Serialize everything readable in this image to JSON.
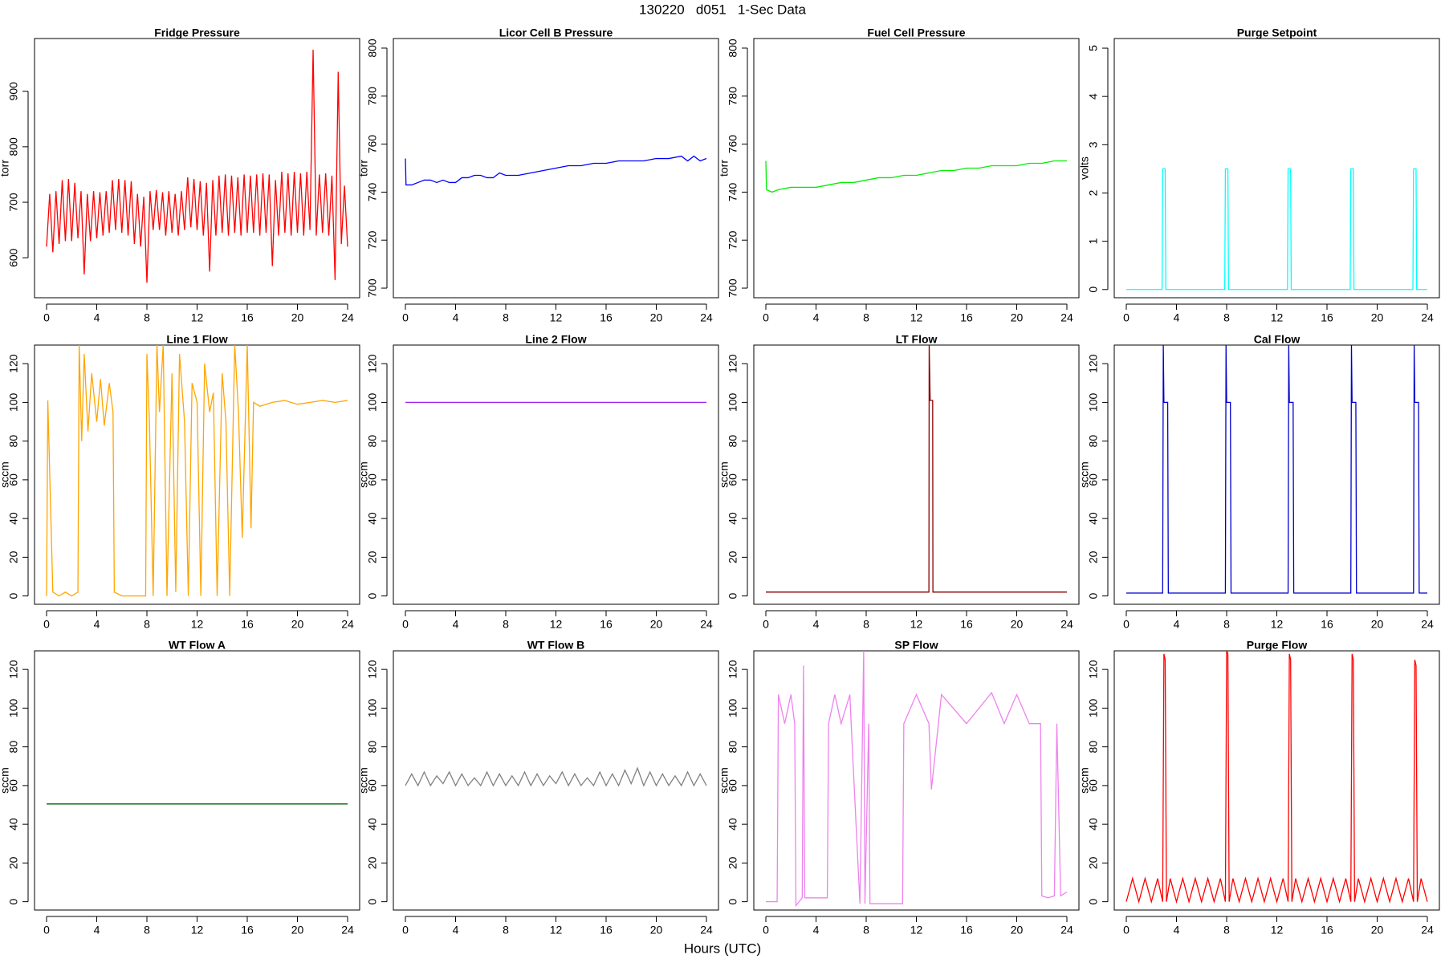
{
  "title": "130220   d051   1-Sec Data",
  "xlabel": "Hours (UTC)",
  "chart_data": [
    {
      "type": "line",
      "title": "Fridge Pressure",
      "ylabel": "torr",
      "x": [
        0,
        0.25,
        0.5,
        0.75,
        1,
        1.25,
        1.5,
        1.75,
        2,
        2.25,
        2.5,
        2.75,
        3,
        3.25,
        3.5,
        3.75,
        4,
        4.25,
        4.5,
        4.75,
        5,
        5.25,
        5.5,
        5.75,
        6,
        6.25,
        6.5,
        6.75,
        7,
        7.25,
        7.5,
        7.75,
        8,
        8.25,
        8.5,
        8.75,
        9,
        9.25,
        9.5,
        9.75,
        10,
        10.25,
        10.5,
        10.75,
        11,
        11.25,
        11.5,
        11.75,
        12,
        12.25,
        12.5,
        12.75,
        13,
        13.25,
        13.5,
        13.75,
        14,
        14.25,
        14.5,
        14.75,
        15,
        15.25,
        15.5,
        15.75,
        16,
        16.25,
        16.5,
        16.75,
        17,
        17.25,
        17.5,
        17.75,
        18,
        18.25,
        18.5,
        18.75,
        19,
        19.25,
        19.5,
        19.75,
        20,
        20.25,
        20.5,
        20.75,
        21,
        21.25,
        21.5,
        21.75,
        22,
        22.25,
        22.5,
        22.75,
        23,
        23.25,
        23.5,
        23.75,
        24
      ],
      "series": [
        {
          "color": "#ff0000",
          "values": [
            620,
            715,
            610,
            720,
            625,
            740,
            630,
            742,
            630,
            735,
            635,
            720,
            570,
            715,
            630,
            720,
            635,
            718,
            640,
            720,
            645,
            740,
            650,
            742,
            645,
            740,
            640,
            738,
            625,
            715,
            620,
            710,
            555,
            720,
            650,
            722,
            650,
            718,
            640,
            720,
            645,
            715,
            640,
            720,
            650,
            745,
            655,
            742,
            650,
            738,
            640,
            735,
            575,
            740,
            640,
            748,
            645,
            750,
            640,
            748,
            645,
            745,
            640,
            750,
            645,
            748,
            645,
            750,
            640,
            752,
            645,
            750,
            585,
            740,
            640,
            755,
            645,
            752,
            640,
            755,
            645,
            752,
            640,
            755,
            650,
            975,
            640,
            750,
            645,
            752,
            640,
            748,
            560,
            935,
            625,
            730,
            620
          ]
        }
      ],
      "xlim": [
        -0.96,
        24.96
      ],
      "ylim": [
        528,
        995
      ],
      "xticks": [
        0,
        4,
        8,
        12,
        16,
        20,
        24
      ],
      "yticks": [
        600,
        700,
        800,
        900
      ]
    },
    {
      "type": "line",
      "title": "Licor Cell B Pressure",
      "ylabel": "torr",
      "x": [
        0,
        0.05,
        0.5,
        1,
        1.5,
        2,
        2.5,
        3,
        3.5,
        4,
        4.5,
        5,
        5.5,
        6,
        6.5,
        7,
        7.5,
        8,
        8.5,
        9,
        10,
        11,
        12,
        13,
        14,
        15,
        16,
        17,
        18,
        19,
        20,
        21,
        22,
        22.5,
        23,
        23.5,
        24
      ],
      "series": [
        {
          "color": "#0000ff",
          "values": [
            754,
            743,
            743,
            744,
            745,
            745,
            744,
            745,
            744,
            744,
            746,
            746,
            747,
            747,
            746,
            746,
            748,
            747,
            747,
            747,
            748,
            749,
            750,
            751,
            751,
            752,
            752,
            753,
            753,
            753,
            754,
            754,
            755,
            753,
            755,
            753,
            754
          ]
        }
      ],
      "xlim": [
        -0.96,
        24.96
      ],
      "ylim": [
        696,
        804
      ],
      "xticks": [
        0,
        4,
        8,
        12,
        16,
        20,
        24
      ],
      "yticks": [
        700,
        720,
        740,
        760,
        780,
        800
      ]
    },
    {
      "type": "line",
      "title": "Fuel Cell Pressure",
      "ylabel": "torr",
      "x": [
        0,
        0.05,
        0.5,
        1,
        2,
        3,
        4,
        5,
        6,
        7,
        8,
        9,
        10,
        11,
        12,
        13,
        14,
        15,
        16,
        17,
        18,
        19,
        20,
        21,
        22,
        23,
        24
      ],
      "series": [
        {
          "color": "#00ee00",
          "values": [
            753,
            741,
            740,
            741,
            742,
            742,
            742,
            743,
            744,
            744,
            745,
            746,
            746,
            747,
            747,
            748,
            749,
            749,
            750,
            750,
            751,
            751,
            751,
            752,
            752,
            753,
            753
          ]
        }
      ],
      "xlim": [
        -0.96,
        24.96
      ],
      "ylim": [
        696,
        804
      ],
      "xticks": [
        0,
        4,
        8,
        12,
        16,
        20,
        24
      ],
      "yticks": [
        700,
        720,
        740,
        760,
        780,
        800
      ]
    },
    {
      "type": "line",
      "title": "Purge Setpoint",
      "ylabel": "volts",
      "x": [
        0,
        2.85,
        2.9,
        3.1,
        3.15,
        7.85,
        7.9,
        8.1,
        8.15,
        12.85,
        12.9,
        13.1,
        13.15,
        17.85,
        17.9,
        18.1,
        18.15,
        22.85,
        22.9,
        23.1,
        23.15,
        24
      ],
      "series": [
        {
          "color": "#00ffff",
          "values": [
            0,
            0,
            2.5,
            2.5,
            0,
            0,
            2.5,
            2.5,
            0,
            0,
            2.5,
            2.5,
            0,
            0,
            2.5,
            2.5,
            0,
            0,
            2.5,
            2.5,
            0,
            0
          ]
        }
      ],
      "xlim": [
        -0.96,
        24.96
      ],
      "ylim": [
        -0.17,
        5.2
      ],
      "xticks": [
        0,
        4,
        8,
        12,
        16,
        20,
        24
      ],
      "yticks": [
        0,
        1,
        2,
        3,
        4,
        5
      ]
    },
    {
      "type": "line",
      "title": "Line 1 Flow",
      "ylabel": "sccm",
      "x": [
        0,
        0.1,
        0.5,
        1,
        1.5,
        2,
        2.5,
        2.6,
        2.8,
        3,
        3.3,
        3.6,
        4,
        4.3,
        4.6,
        5,
        5.3,
        5.4,
        6,
        7,
        7.9,
        8,
        8.2,
        8.5,
        8.8,
        9,
        9.3,
        9.6,
        10,
        10.3,
        10.6,
        11,
        11.3,
        11.6,
        12,
        12.3,
        12.6,
        13,
        13.3,
        13.6,
        14,
        14.3,
        14.6,
        15,
        15.3,
        15.6,
        16,
        16.3,
        16.5,
        17,
        18,
        19,
        20,
        21,
        22,
        23,
        24
      ],
      "series": [
        {
          "color": "#ffa500",
          "values": [
            0,
            101,
            2,
            0,
            2,
            0,
            2,
            130,
            80,
            125,
            85,
            115,
            90,
            112,
            88,
            110,
            95,
            2,
            0,
            0,
            0,
            125,
            90,
            0,
            130,
            95,
            130,
            0,
            115,
            2,
            125,
            90,
            0,
            110,
            100,
            0,
            120,
            95,
            105,
            0,
            115,
            90,
            0,
            130,
            95,
            30,
            130,
            35,
            100,
            98,
            100,
            101,
            99,
            100,
            101,
            100,
            101
          ]
        }
      ],
      "xlim": [
        -0.96,
        24.96
      ],
      "ylim": [
        -4.3,
        129.6
      ],
      "xticks": [
        0,
        4,
        8,
        12,
        16,
        20,
        24
      ],
      "yticks": [
        0,
        20,
        40,
        60,
        80,
        100,
        120
      ]
    },
    {
      "type": "line",
      "title": "Line 2 Flow",
      "ylabel": "sccm",
      "x": [
        0,
        12,
        24
      ],
      "series": [
        {
          "color": "#a020f0",
          "values": [
            100,
            100,
            100
          ]
        }
      ],
      "xlim": [
        -0.96,
        24.96
      ],
      "ylim": [
        -4.3,
        129.6
      ],
      "xticks": [
        0,
        4,
        8,
        12,
        16,
        20,
        24
      ],
      "yticks": [
        0,
        20,
        40,
        60,
        80,
        100,
        120
      ]
    },
    {
      "type": "line",
      "title": "LT Flow",
      "ylabel": "sccm",
      "x": [
        0,
        13,
        13.02,
        13.1,
        13.3,
        13.32,
        24
      ],
      "series": [
        {
          "color": "#8b0000",
          "values": [
            2,
            2,
            130,
            101,
            101,
            2,
            2
          ]
        }
      ],
      "xlim": [
        -0.96,
        24.96
      ],
      "ylim": [
        -4.3,
        129.6
      ],
      "xticks": [
        0,
        4,
        8,
        12,
        16,
        20,
        24
      ],
      "yticks": [
        0,
        20,
        40,
        60,
        80,
        100,
        120
      ]
    },
    {
      "type": "line",
      "title": "Cal Flow",
      "ylabel": "sccm",
      "x": [
        0,
        2.9,
        2.95,
        3.0,
        3.3,
        3.35,
        7.9,
        7.95,
        8.0,
        8.3,
        8.35,
        12.9,
        12.95,
        13.0,
        13.3,
        13.35,
        17.9,
        17.95,
        18.0,
        18.3,
        18.35,
        22.9,
        22.95,
        23.0,
        23.3,
        23.35,
        24
      ],
      "series": [
        {
          "color": "#0000cd",
          "values": [
            1.5,
            1.5,
            130,
            100,
            100,
            1.5,
            1.5,
            130,
            100,
            100,
            1.5,
            1.5,
            130,
            100,
            100,
            1.5,
            1.5,
            130,
            100,
            100,
            1.5,
            1.5,
            130,
            100,
            100,
            1.5,
            1.5
          ]
        }
      ],
      "xlim": [
        -0.96,
        24.96
      ],
      "ylim": [
        -4.3,
        129.6
      ],
      "xticks": [
        0,
        4,
        8,
        12,
        16,
        20,
        24
      ],
      "yticks": [
        0,
        20,
        40,
        60,
        80,
        100,
        120
      ]
    },
    {
      "type": "line",
      "title": "WT Flow A",
      "ylabel": "sccm",
      "x": [
        0,
        12,
        24
      ],
      "series": [
        {
          "color": "#006400",
          "values": [
            50.5,
            50.5,
            50.5
          ]
        }
      ],
      "xlim": [
        -0.96,
        24.96
      ],
      "ylim": [
        -4.3,
        129.6
      ],
      "xticks": [
        0,
        4,
        8,
        12,
        16,
        20,
        24
      ],
      "yticks": [
        0,
        20,
        40,
        60,
        80,
        100,
        120
      ]
    },
    {
      "type": "line",
      "title": "WT Flow B",
      "ylabel": "sccm",
      "x": [
        0,
        0.5,
        1,
        1.5,
        2,
        2.5,
        3,
        3.5,
        4,
        4.5,
        5,
        5.5,
        6,
        6.5,
        7,
        7.5,
        8,
        8.5,
        9,
        9.5,
        10,
        10.5,
        11,
        11.5,
        12,
        12.5,
        13,
        13.5,
        14,
        14.5,
        15,
        15.5,
        16,
        16.5,
        17,
        17.5,
        18,
        18.5,
        19,
        19.5,
        20,
        20.5,
        21,
        21.5,
        22,
        22.5,
        23,
        23.5,
        24
      ],
      "series": [
        {
          "color": "#808080",
          "values": [
            60,
            66,
            60,
            67,
            60,
            65,
            61,
            67,
            60,
            66,
            60,
            64,
            60,
            67,
            60,
            66,
            60,
            65,
            60,
            67,
            60,
            66,
            60,
            65,
            61,
            67,
            60,
            66,
            60,
            64,
            60,
            67,
            60,
            66,
            60,
            68,
            61,
            69,
            60,
            67,
            60,
            66,
            60,
            65,
            60,
            67,
            60,
            66,
            60
          ]
        }
      ],
      "xlim": [
        -0.96,
        24.96
      ],
      "ylim": [
        -4.3,
        129.6
      ],
      "xticks": [
        0,
        4,
        8,
        12,
        16,
        20,
        24
      ],
      "yticks": [
        0,
        20,
        40,
        60,
        80,
        100,
        120
      ]
    },
    {
      "type": "line",
      "title": "SP Flow",
      "ylabel": "sccm",
      "x": [
        0,
        0.9,
        1,
        1.5,
        2,
        2.3,
        2.4,
        2.9,
        3,
        3.1,
        4.9,
        5,
        5.5,
        6,
        6.7,
        6.8,
        7.5,
        7.8,
        7.9,
        8.2,
        8.3,
        10.9,
        11,
        12,
        13,
        13.2,
        14,
        16,
        18,
        19,
        20,
        21,
        21.9,
        22,
        22.5,
        23,
        23.2,
        23.5,
        24
      ],
      "series": [
        {
          "color": "#ee82ee",
          "values": [
            0,
            0,
            107,
            92,
            107,
            92,
            -2,
            2,
            122,
            2,
            2,
            92,
            107,
            92,
            107,
            92,
            -1,
            130,
            -1,
            92,
            -1,
            -1,
            92,
            107,
            92,
            58,
            107,
            92,
            108,
            92,
            107,
            92,
            92,
            3,
            2,
            3,
            92,
            3,
            5
          ]
        }
      ],
      "xlim": [
        -0.96,
        24.96
      ],
      "ylim": [
        -4.3,
        129.6
      ],
      "xticks": [
        0,
        4,
        8,
        12,
        16,
        20,
        24
      ],
      "yticks": [
        0,
        20,
        40,
        60,
        80,
        100,
        120
      ]
    },
    {
      "type": "line",
      "title": "Purge Flow",
      "ylabel": "sccm",
      "x": [
        0,
        0.5,
        1,
        1.5,
        2,
        2.5,
        2.9,
        3.0,
        3.1,
        3.2,
        3.5,
        4,
        4.5,
        5,
        5.5,
        6,
        6.5,
        7,
        7.5,
        7.9,
        8.0,
        8.1,
        8.2,
        8.5,
        9,
        9.5,
        10,
        10.5,
        11,
        11.5,
        12,
        12.5,
        12.9,
        13.0,
        13.1,
        13.2,
        13.5,
        14,
        14.5,
        15,
        15.5,
        16,
        16.5,
        17,
        17.5,
        17.9,
        18.0,
        18.1,
        18.2,
        18.5,
        19,
        19.5,
        20,
        20.5,
        21,
        21.5,
        22,
        22.5,
        22.9,
        23.0,
        23.1,
        23.2,
        23.5,
        24
      ],
      "series": [
        {
          "color": "#ff0000",
          "values": [
            0,
            12,
            0,
            12,
            0,
            12,
            0,
            128,
            125,
            0,
            12,
            0,
            12,
            0,
            12,
            0,
            12,
            0,
            12,
            0,
            130,
            128,
            0,
            12,
            0,
            12,
            0,
            12,
            0,
            12,
            0,
            12,
            0,
            128,
            125,
            0,
            12,
            0,
            12,
            0,
            12,
            0,
            12,
            0,
            12,
            0,
            128,
            125,
            0,
            12,
            0,
            12,
            0,
            12,
            0,
            12,
            0,
            12,
            0,
            125,
            122,
            0,
            12,
            0
          ]
        }
      ],
      "xlim": [
        -0.96,
        24.96
      ],
      "ylim": [
        -4.3,
        129.6
      ],
      "xticks": [
        0,
        4,
        8,
        12,
        16,
        20,
        24
      ],
      "yticks": [
        0,
        20,
        40,
        60,
        80,
        100,
        120
      ]
    }
  ]
}
